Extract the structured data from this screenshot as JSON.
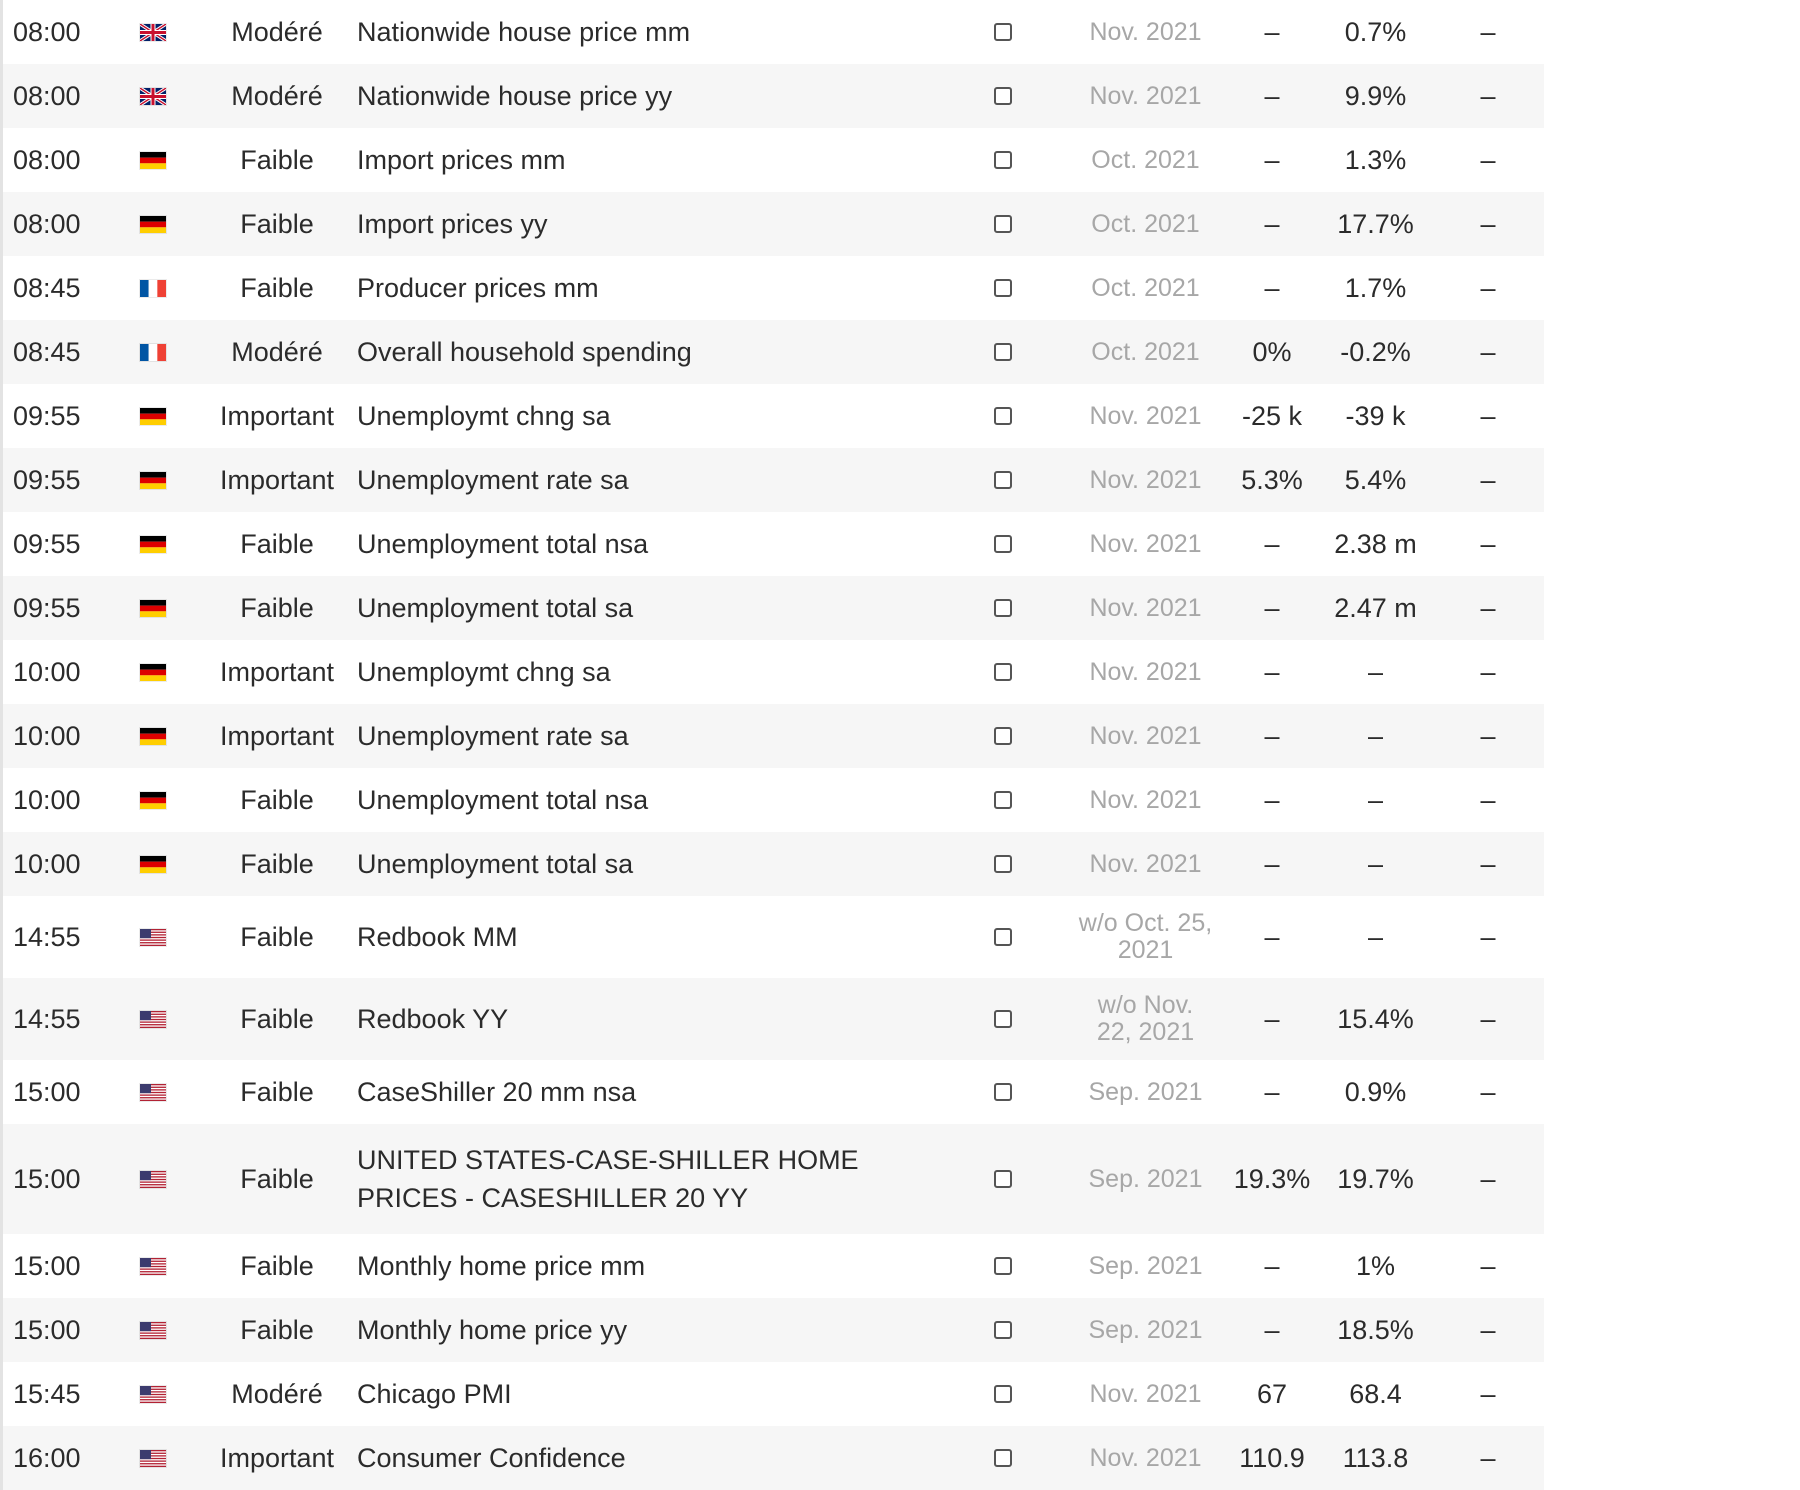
{
  "rows": [
    {
      "time": "08:00",
      "flag": "gb-flag-icon",
      "importance": "Modéré",
      "event": "Nationwide house price mm",
      "period": "Nov. 2021",
      "forecast": "–",
      "previous": "0.7%",
      "actual": "–"
    },
    {
      "time": "08:00",
      "flag": "gb-flag-icon",
      "importance": "Modéré",
      "event": "Nationwide house price yy",
      "period": "Nov. 2021",
      "forecast": "–",
      "previous": "9.9%",
      "actual": "–"
    },
    {
      "time": "08:00",
      "flag": "de-flag-icon",
      "importance": "Faible",
      "event": "Import prices mm",
      "period": "Oct. 2021",
      "forecast": "–",
      "previous": "1.3%",
      "actual": "–"
    },
    {
      "time": "08:00",
      "flag": "de-flag-icon",
      "importance": "Faible",
      "event": "Import prices yy",
      "period": "Oct. 2021",
      "forecast": "–",
      "previous": "17.7%",
      "actual": "–"
    },
    {
      "time": "08:45",
      "flag": "fr-flag-icon",
      "importance": "Faible",
      "event": "Producer prices mm",
      "period": "Oct. 2021",
      "forecast": "–",
      "previous": "1.7%",
      "actual": "–"
    },
    {
      "time": "08:45",
      "flag": "fr-flag-icon",
      "importance": "Modéré",
      "event": "Overall household spending",
      "period": "Oct. 2021",
      "forecast": "0%",
      "previous": "-0.2%",
      "actual": "–"
    },
    {
      "time": "09:55",
      "flag": "de-flag-icon",
      "importance": "Important",
      "event": "Unemploymt chng sa",
      "period": "Nov. 2021",
      "forecast": "-25 k",
      "previous": "-39 k",
      "actual": "–"
    },
    {
      "time": "09:55",
      "flag": "de-flag-icon",
      "importance": "Important",
      "event": "Unemployment rate sa",
      "period": "Nov. 2021",
      "forecast": "5.3%",
      "previous": "5.4%",
      "actual": "–"
    },
    {
      "time": "09:55",
      "flag": "de-flag-icon",
      "importance": "Faible",
      "event": "Unemployment total nsa",
      "period": "Nov. 2021",
      "forecast": "–",
      "previous": "2.38 m",
      "actual": "–"
    },
    {
      "time": "09:55",
      "flag": "de-flag-icon",
      "importance": "Faible",
      "event": "Unemployment total sa",
      "period": "Nov. 2021",
      "forecast": "–",
      "previous": "2.47 m",
      "actual": "–"
    },
    {
      "time": "10:00",
      "flag": "de-flag-icon",
      "importance": "Important",
      "event": "Unemploymt chng sa",
      "period": "Nov. 2021",
      "forecast": "–",
      "previous": "–",
      "actual": "–"
    },
    {
      "time": "10:00",
      "flag": "de-flag-icon",
      "importance": "Important",
      "event": "Unemployment rate sa",
      "period": "Nov. 2021",
      "forecast": "–",
      "previous": "–",
      "actual": "–"
    },
    {
      "time": "10:00",
      "flag": "de-flag-icon",
      "importance": "Faible",
      "event": "Unemployment total nsa",
      "period": "Nov. 2021",
      "forecast": "–",
      "previous": "–",
      "actual": "–"
    },
    {
      "time": "10:00",
      "flag": "de-flag-icon",
      "importance": "Faible",
      "event": "Unemployment total sa",
      "period": "Nov. 2021",
      "forecast": "–",
      "previous": "–",
      "actual": "–"
    },
    {
      "time": "14:55",
      "flag": "us-flag-icon",
      "importance": "Faible",
      "event": "Redbook MM",
      "period": "w/o Oct. 25, 2021",
      "forecast": "–",
      "previous": "–",
      "actual": "–"
    },
    {
      "time": "14:55",
      "flag": "us-flag-icon",
      "importance": "Faible",
      "event": "Redbook YY",
      "period": "w/o Nov. 22, 2021",
      "forecast": "–",
      "previous": "15.4%",
      "actual": "–"
    },
    {
      "time": "15:00",
      "flag": "us-flag-icon",
      "importance": "Faible",
      "event": "CaseShiller 20 mm nsa",
      "period": "Sep. 2021",
      "forecast": "–",
      "previous": "0.9%",
      "actual": "–"
    },
    {
      "time": "15:00",
      "flag": "us-flag-icon",
      "importance": "Faible",
      "event": "UNITED STATES-CASE-SHILLER HOME PRICES - CASESHILLER 20 YY",
      "period": "Sep. 2021",
      "forecast": "19.3%",
      "previous": "19.7%",
      "actual": "–"
    },
    {
      "time": "15:00",
      "flag": "us-flag-icon",
      "importance": "Faible",
      "event": "Monthly home price mm",
      "period": "Sep. 2021",
      "forecast": "–",
      "previous": "1%",
      "actual": "–"
    },
    {
      "time": "15:00",
      "flag": "us-flag-icon",
      "importance": "Faible",
      "event": "Monthly home price yy",
      "period": "Sep. 2021",
      "forecast": "–",
      "previous": "18.5%",
      "actual": "–"
    },
    {
      "time": "15:45",
      "flag": "us-flag-icon",
      "importance": "Modéré",
      "event": "Chicago PMI",
      "period": "Nov. 2021",
      "forecast": "67",
      "previous": "68.4",
      "actual": "–"
    },
    {
      "time": "16:00",
      "flag": "us-flag-icon",
      "importance": "Important",
      "event": "Consumer Confidence",
      "period": "Nov. 2021",
      "forecast": "110.9",
      "previous": "113.8",
      "actual": "–"
    }
  ]
}
